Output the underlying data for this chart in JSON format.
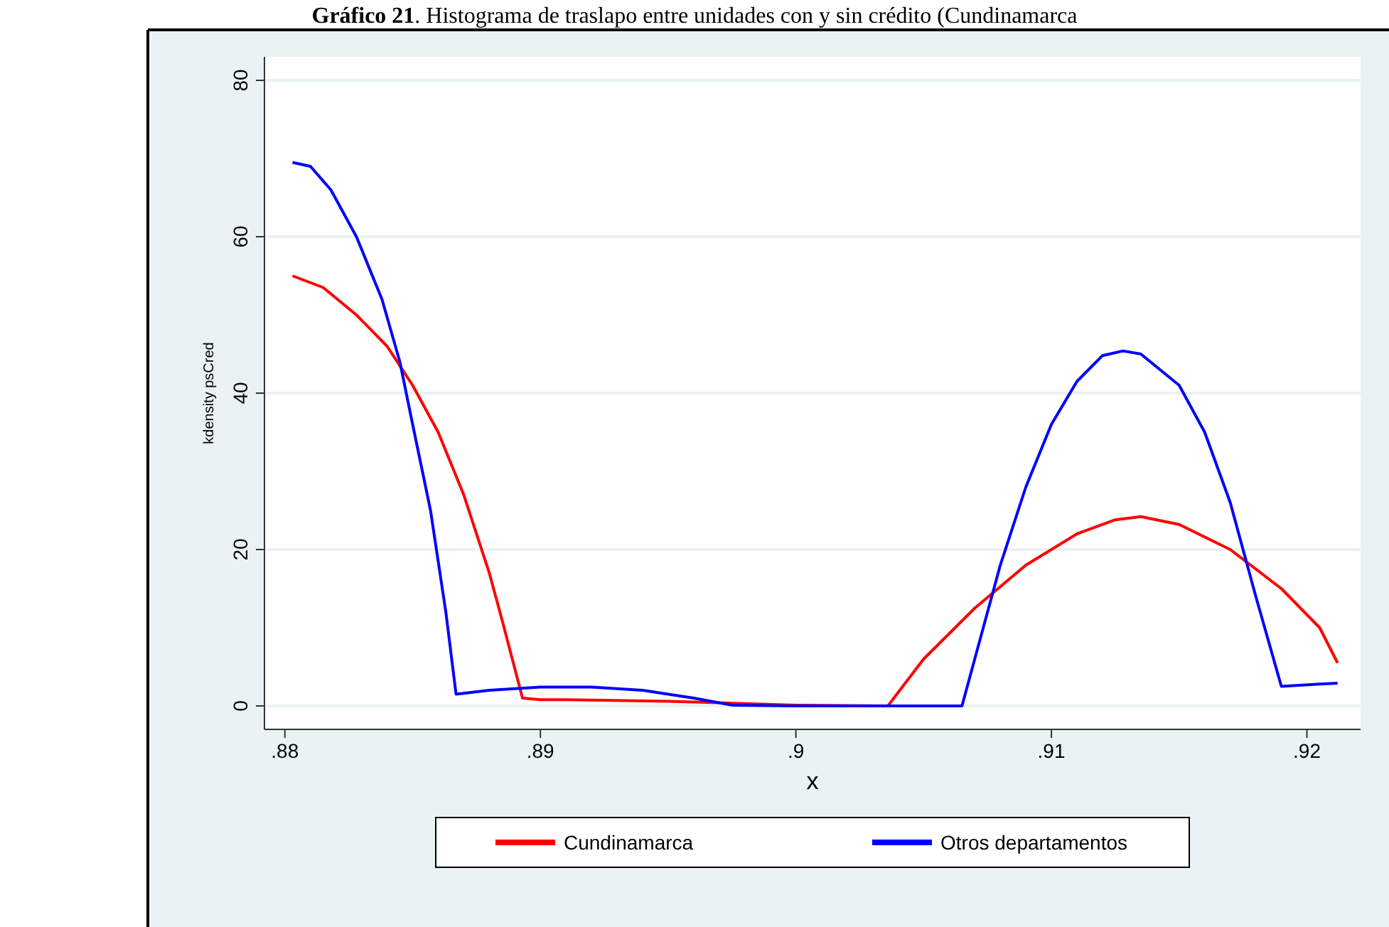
{
  "chart_data": {
    "type": "line",
    "title": "Gráfico 21. Histograma de traslapo entre unidades con y sin crédito (Cundinamarca",
    "xlabel": "x",
    "ylabel": "kdensity psCred",
    "xlim": [
      0.8792,
      0.9221
    ],
    "xticks": [
      {
        "value": 0.88,
        "label": ".88"
      },
      {
        "value": 0.89,
        "label": ".89"
      },
      {
        "value": 0.9,
        "label": ".9"
      },
      {
        "value": 0.91,
        "label": ".91"
      },
      {
        "value": 0.92,
        "label": ".92"
      }
    ],
    "ylim": [
      -3,
      83
    ],
    "yticks": [
      0,
      20,
      40,
      60,
      80
    ],
    "grid": "y",
    "legend": "bottom",
    "line_style": "solid",
    "marker": "none",
    "series": [
      {
        "name": "Cundinamarca",
        "color": "#ff0000",
        "x": [
          0.8803,
          0.8815,
          0.8828,
          0.884,
          0.885,
          0.886,
          0.887,
          0.888,
          0.8885,
          0.8893,
          0.89,
          0.891,
          0.895,
          0.898,
          0.9,
          0.9036,
          0.905,
          0.907,
          0.909,
          0.911,
          0.9125,
          0.9135,
          0.915,
          0.917,
          0.919,
          0.9205,
          0.9212
        ],
        "values": [
          55,
          53.5,
          50,
          46,
          41,
          35,
          27,
          17,
          11,
          1,
          0.8,
          0.8,
          0.6,
          0.3,
          0.1,
          0,
          6,
          12.5,
          18,
          22,
          23.8,
          24.2,
          23.2,
          20,
          15,
          10,
          5.5
        ]
      },
      {
        "name": "Otros departamentos",
        "color": "#0000ff",
        "x": [
          0.8803,
          0.881,
          0.8818,
          0.8828,
          0.8838,
          0.8845,
          0.885,
          0.8857,
          0.8863,
          0.8867,
          0.888,
          0.89,
          0.892,
          0.894,
          0.896,
          0.8975,
          0.9,
          0.9065,
          0.907,
          0.908,
          0.909,
          0.91,
          0.911,
          0.912,
          0.9128,
          0.9135,
          0.915,
          0.916,
          0.917,
          0.918,
          0.919,
          0.9205,
          0.9212
        ],
        "values": [
          69.5,
          69,
          66,
          60,
          52,
          44,
          36,
          25,
          12,
          1.5,
          2,
          2.4,
          2.4,
          2,
          1,
          0.1,
          0,
          0,
          6,
          18,
          28,
          36,
          41.5,
          44.8,
          45.4,
          45,
          41,
          35,
          26,
          14,
          2.5,
          2.8,
          2.9
        ]
      }
    ]
  }
}
